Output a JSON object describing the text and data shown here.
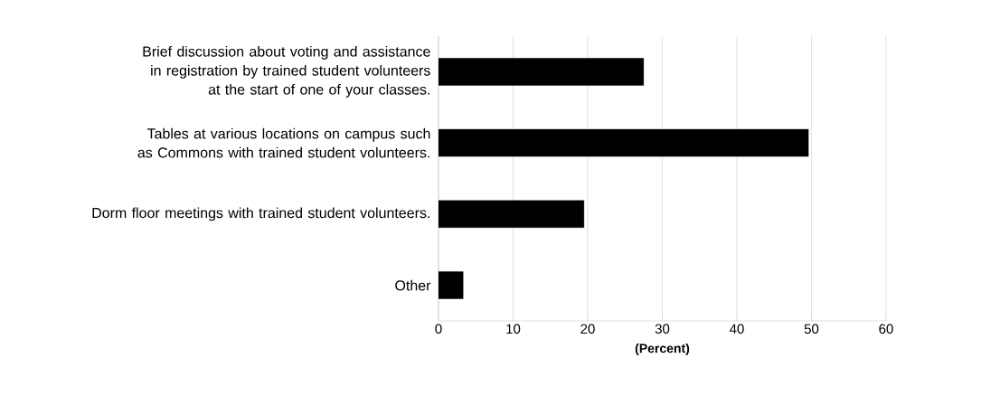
{
  "chart_data": {
    "type": "bar",
    "orientation": "horizontal",
    "xlabel": "(Percent)",
    "categories": [
      "Brief discussion about voting and assistance in registration by trained student volunteers at the start of one of your classes.",
      "Tables at various locations on campus such as Commons with trained student volunteers.",
      "Dorm floor meetings with trained student volunteers.",
      "Other"
    ],
    "values": [
      27.5,
      49.6,
      19.5,
      3.3
    ],
    "color": "#000000",
    "xlim": [
      0,
      60
    ],
    "xticks": [
      0,
      10,
      20,
      30,
      40,
      50,
      60
    ],
    "grid": "x"
  }
}
